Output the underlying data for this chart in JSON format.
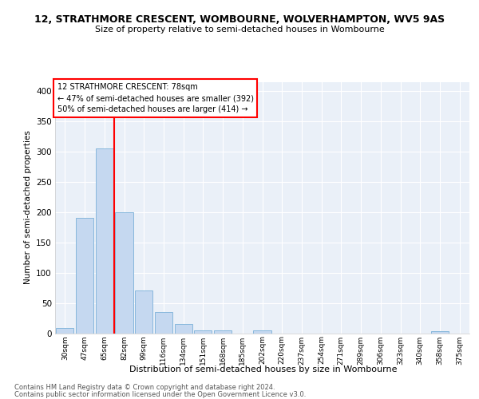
{
  "title": "12, STRATHMORE CRESCENT, WOMBOURNE, WOLVERHAMPTON, WV5 9AS",
  "subtitle": "Size of property relative to semi-detached houses in Wombourne",
  "xlabel": "Distribution of semi-detached houses by size in Wombourne",
  "ylabel": "Number of semi-detached properties",
  "footer1": "Contains HM Land Registry data © Crown copyright and database right 2024.",
  "footer2": "Contains public sector information licensed under the Open Government Licence v3.0.",
  "categories": [
    "30sqm",
    "47sqm",
    "65sqm",
    "82sqm",
    "99sqm",
    "116sqm",
    "134sqm",
    "151sqm",
    "168sqm",
    "185sqm",
    "202sqm",
    "220sqm",
    "237sqm",
    "254sqm",
    "271sqm",
    "289sqm",
    "306sqm",
    "323sqm",
    "340sqm",
    "358sqm",
    "375sqm"
  ],
  "values": [
    8,
    190,
    305,
    200,
    70,
    35,
    15,
    5,
    5,
    0,
    5,
    0,
    0,
    0,
    0,
    0,
    0,
    0,
    0,
    3,
    0
  ],
  "bar_color": "#c5d8f0",
  "bar_edge_color": "#7ab0d8",
  "vline_x": 2.5,
  "vline_color": "red",
  "annotation_text1": "12 STRATHMORE CRESCENT: 78sqm",
  "annotation_text2": "← 47% of semi-detached houses are smaller (392)",
  "annotation_text3": "50% of semi-detached houses are larger (414) →",
  "ylim": [
    0,
    415
  ],
  "yticks": [
    0,
    50,
    100,
    150,
    200,
    250,
    300,
    350,
    400
  ],
  "background_color": "#eaf0f8",
  "grid_color": "#ffffff",
  "title_fontsize": 9,
  "subtitle_fontsize": 8.5
}
